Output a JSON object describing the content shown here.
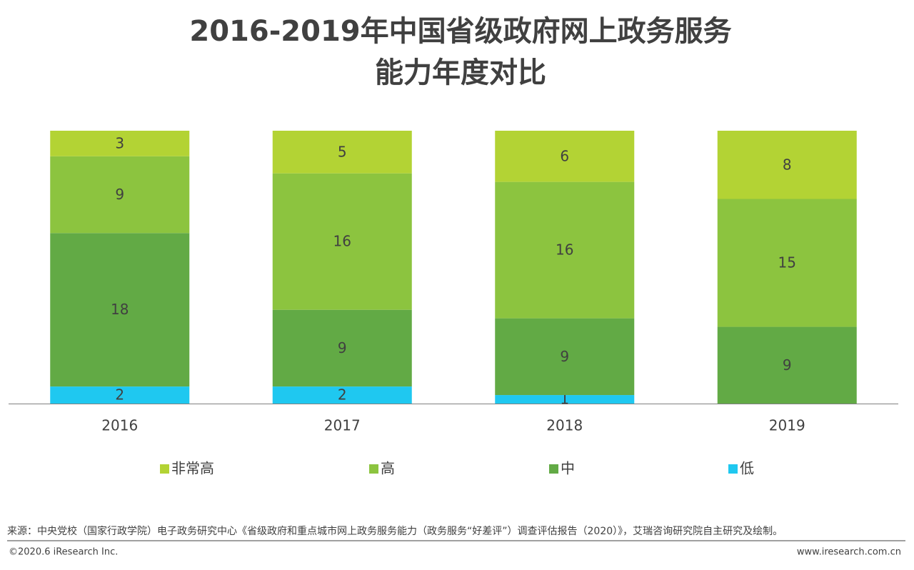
{
  "chart_data": {
    "type": "stacked-bar",
    "title": [
      "2016-2019年中国省级政府网上政务服务",
      "能力年度对比"
    ],
    "categories": [
      "2016",
      "2017",
      "2018",
      "2019"
    ],
    "series": [
      {
        "name": "非常高",
        "color": "#b3d334",
        "values": [
          3,
          5,
          6,
          8
        ]
      },
      {
        "name": "高",
        "color": "#8cc43f",
        "values": [
          9,
          16,
          16,
          15
        ]
      },
      {
        "name": "中",
        "color": "#62aa45",
        "values": [
          18,
          9,
          9,
          9
        ]
      },
      {
        "name": "低",
        "color": "#1fc8f0",
        "values": [
          2,
          2,
          1,
          null
        ]
      }
    ],
    "ylim": [
      0,
      32
    ]
  },
  "footer": {
    "source": "来源：中央党校（国家行政学院）电子政务研究中心《省级政府和重点城市网上政务服务能力（政务服务“好差评”）调查评估报告（2020）》，艾瑞咨询研究院自主研究及绘制。",
    "copyright": "©2020.6 iResearch Inc.",
    "website": "www.iresearch.com.cn"
  }
}
